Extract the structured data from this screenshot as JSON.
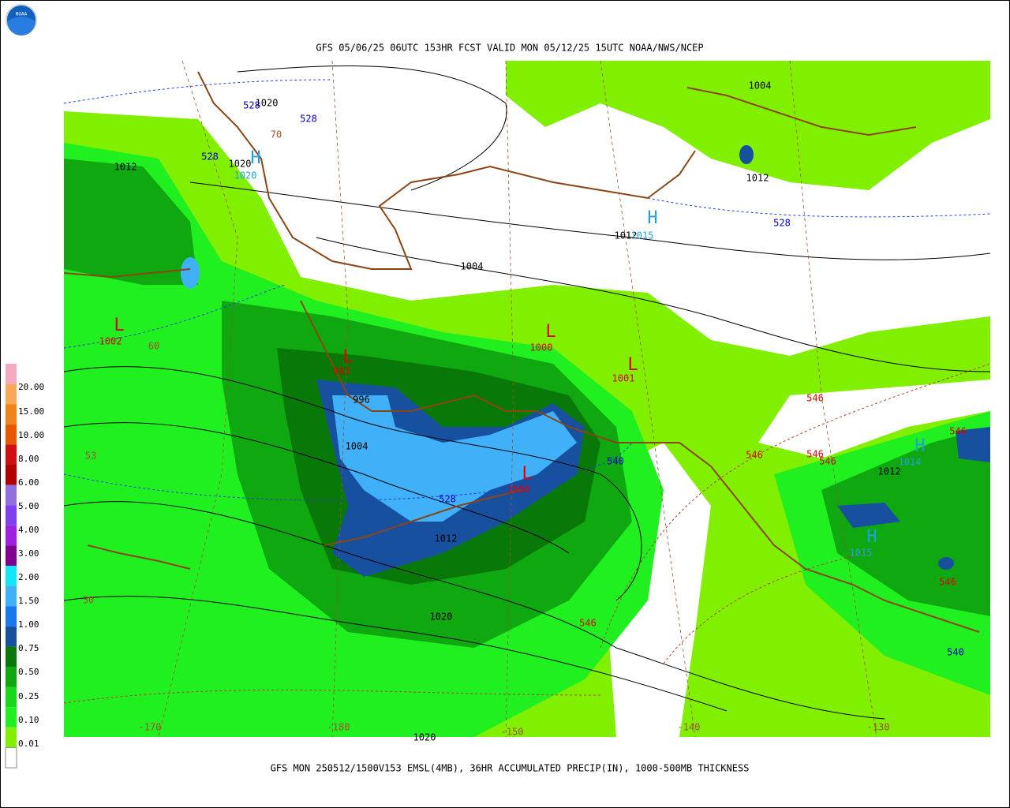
{
  "header": {
    "title": "GFS 05/06/25 06UTC 153HR FCST VALID MON 05/12/25 15UTC NOAA/NWS/NCEP",
    "logo": "NOAA"
  },
  "footer": "GFS MON 250512/1500V153 EMSL(4MB), 36HR ACCUMULATED PRECIP(IN), 1000-500MB THICKNESS",
  "legend": {
    "labels": [
      "20.00",
      "15.00",
      "10.00",
      "8.00",
      "6.00",
      "5.00",
      "4.00",
      "3.00",
      "2.00",
      "1.50",
      "1.00",
      "0.75",
      "0.50",
      "0.25",
      "0.10",
      "0.01"
    ],
    "colors": [
      "#f6a8c0",
      "#f8a858",
      "#f08418",
      "#e85800",
      "#d01010",
      "#b00000",
      "#9070e0",
      "#8040f0",
      "#a020e0",
      "#800090",
      "#10e8f8",
      "#40b0f8",
      "#1878f0",
      "#1850a0",
      "#087808",
      "#10a810",
      "#18d818",
      "#20f020",
      "#80f000",
      "#ffffff"
    ]
  },
  "map_labels": [
    {
      "text": "1012",
      "color": "#000000"
    },
    {
      "text": "1020",
      "color": "#000000"
    },
    {
      "text": "528",
      "color": "#0000c0"
    },
    {
      "text": "528",
      "color": "#0000c0"
    },
    {
      "text": "528",
      "color": "#0000c0"
    },
    {
      "text": "1020",
      "color": "#000000"
    },
    {
      "text": "H",
      "color": "#20a0e0"
    },
    {
      "text": "1020",
      "color": "#20a0e0"
    },
    {
      "text": "1004",
      "color": "#000000"
    },
    {
      "text": "1004",
      "color": "#000000"
    },
    {
      "text": "1012",
      "color": "#000000"
    },
    {
      "text": "1012",
      "color": "#000000"
    },
    {
      "text": "H",
      "color": "#20a0e0"
    },
    {
      "text": "1015",
      "color": "#20a0e0"
    },
    {
      "text": "528",
      "color": "#0000c0"
    },
    {
      "text": "L",
      "color": "#e00000"
    },
    {
      "text": "1002",
      "color": "#e00000"
    },
    {
      "text": "60",
      "color": "#a05030"
    },
    {
      "text": "L",
      "color": "#e00000"
    },
    {
      "text": "993",
      "color": "#e00000"
    },
    {
      "text": "996",
      "color": "#000000"
    },
    {
      "text": "L",
      "color": "#e00000"
    },
    {
      "text": "1000",
      "color": "#e00000"
    },
    {
      "text": "L",
      "color": "#e00000"
    },
    {
      "text": "1001",
      "color": "#e00000"
    },
    {
      "text": "546",
      "color": "#e00000"
    },
    {
      "text": "1004",
      "color": "#000000"
    },
    {
      "text": "540",
      "color": "#0000c0"
    },
    {
      "text": "528",
      "color": "#0000c0"
    },
    {
      "text": "L",
      "color": "#e00000"
    },
    {
      "text": "1000",
      "color": "#e00000"
    },
    {
      "text": "1012",
      "color": "#000000"
    },
    {
      "text": "546",
      "color": "#e00000"
    },
    {
      "text": "546",
      "color": "#e00000"
    },
    {
      "text": "546",
      "color": "#e00000"
    },
    {
      "text": "546",
      "color": "#e00000"
    },
    {
      "text": "H",
      "color": "#20a0e0"
    },
    {
      "text": "1014",
      "color": "#20a0e0"
    },
    {
      "text": "1012",
      "color": "#000000"
    },
    {
      "text": "H",
      "color": "#20a0e0"
    },
    {
      "text": "1015",
      "color": "#20a0e0"
    },
    {
      "text": "546",
      "color": "#e00000"
    },
    {
      "text": "540",
      "color": "#0000c0"
    },
    {
      "text": "1020",
      "color": "#000000"
    },
    {
      "text": "546",
      "color": "#e00000"
    },
    {
      "text": "50",
      "color": "#a05030"
    },
    {
      "text": "53",
      "color": "#a05030"
    },
    {
      "text": "70",
      "color": "#a05030"
    },
    {
      "text": "-170",
      "color": "#a05030"
    },
    {
      "text": "-180",
      "color": "#a05030"
    },
    {
      "text": "-150",
      "color": "#a05030"
    },
    {
      "text": "-140",
      "color": "#a05030"
    },
    {
      "text": "-130",
      "color": "#a05030"
    },
    {
      "text": "1020",
      "color": "#000000"
    }
  ]
}
